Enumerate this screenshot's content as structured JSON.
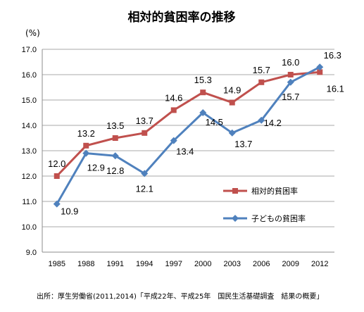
{
  "chart_data": {
    "type": "line",
    "title": "相対的貧困率の推移",
    "unit_label": "(%)",
    "categories": [
      "1985",
      "1988",
      "1991",
      "1994",
      "1997",
      "2000",
      "2003",
      "2006",
      "2009",
      "2012"
    ],
    "ylim": [
      9.0,
      17.0
    ],
    "y_ticks": [
      "9.0",
      "10.0",
      "11.0",
      "12.0",
      "13.0",
      "14.0",
      "15.0",
      "16.0",
      "17.0"
    ],
    "grid": true,
    "legend_position": "lower-right",
    "series": [
      {
        "name": "相対的貧困率",
        "color": "#c0504d",
        "marker": "square",
        "values": [
          12.0,
          13.2,
          13.5,
          13.7,
          14.6,
          15.3,
          14.9,
          15.7,
          16.0,
          16.1
        ],
        "labels": [
          "12.0",
          "13.2",
          "13.5",
          "13.7",
          "14.6",
          "15.3",
          "14.9",
          "15.7",
          "16.0",
          "16.1"
        ]
      },
      {
        "name": "子どもの貧困率",
        "color": "#4f81bd",
        "marker": "diamond",
        "values": [
          10.9,
          12.9,
          12.8,
          12.1,
          13.4,
          14.5,
          13.7,
          14.2,
          15.7,
          16.3
        ],
        "labels": [
          "10.9",
          "12.9",
          "12.8",
          "12.1",
          "13.4",
          "14.5",
          "13.7",
          "14.2",
          "15.7",
          "16.3"
        ]
      }
    ]
  },
  "source": "出所：厚生労働省(2011,2014)「平成22年、平成25年　国民生活基礎調査　結果の概要」"
}
